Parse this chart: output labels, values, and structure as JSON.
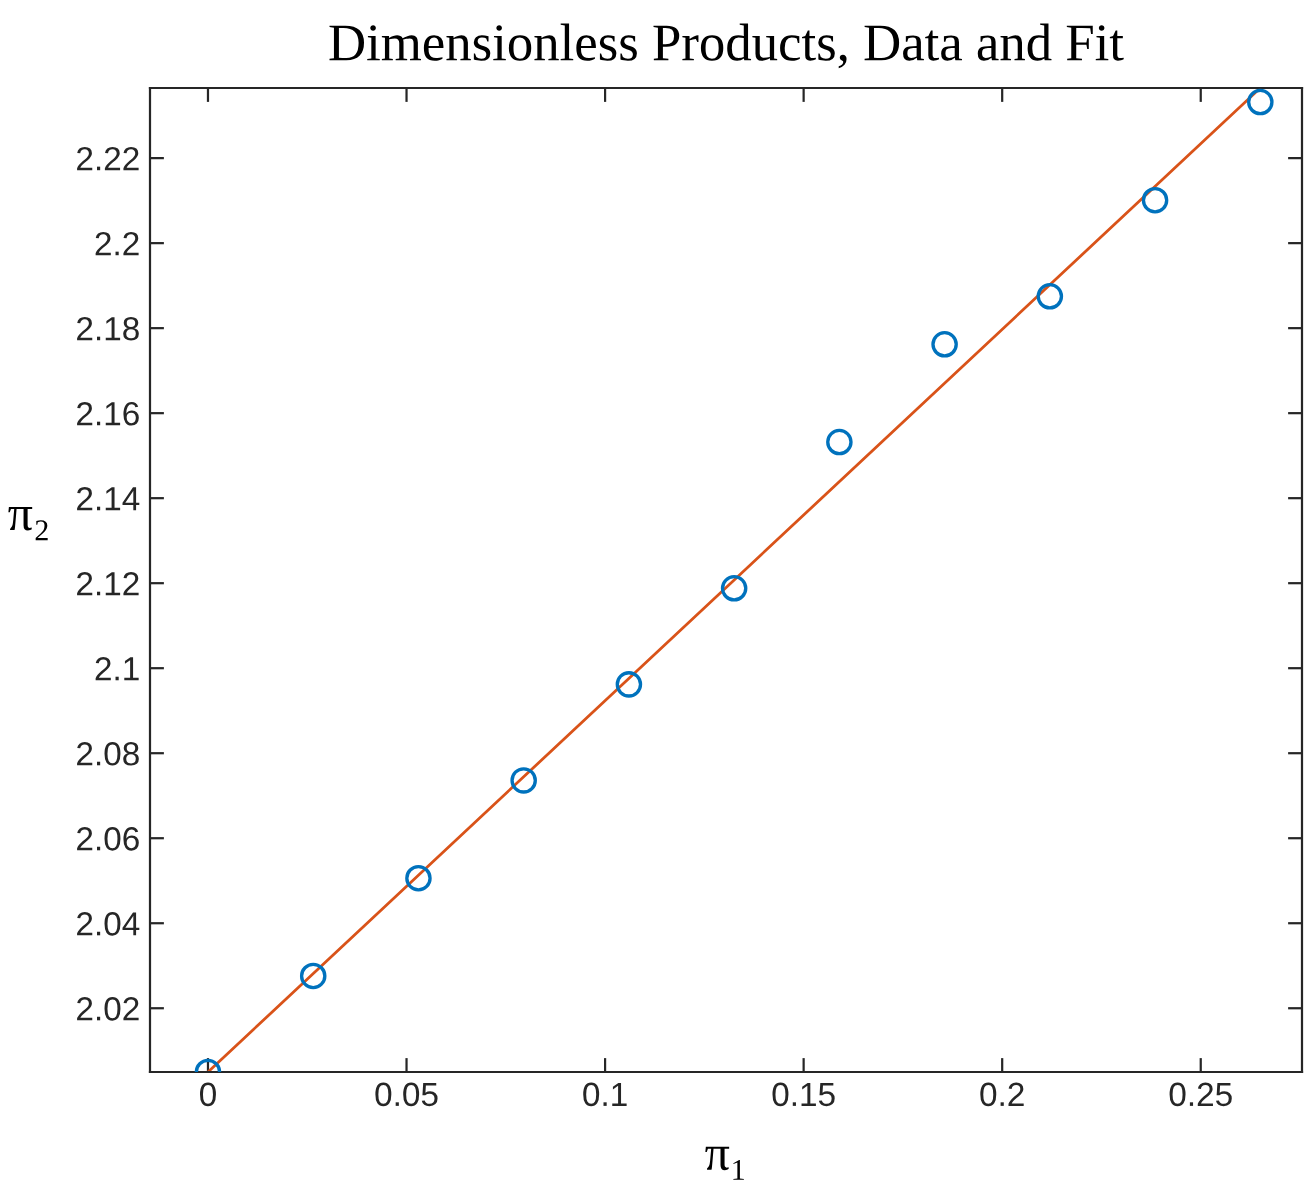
{
  "chart_data": {
    "type": "scatter",
    "title": "Dimensionless Products, Data and Fit",
    "xlabel": "π₁",
    "ylabel": "π₂",
    "xlim": [
      -0.0146,
      0.2755
    ],
    "ylim": [
      2.005,
      2.2365
    ],
    "xticks": [
      0,
      0.05,
      0.1,
      0.15,
      0.2,
      0.25
    ],
    "yticks": [
      2.02,
      2.04,
      2.06,
      2.08,
      2.1,
      2.12,
      2.14,
      2.16,
      2.18,
      2.2,
      2.22
    ],
    "grid": false,
    "series": [
      {
        "color": "#0072bd",
        "marker": "circle",
        "x": [
          0,
          0.0265,
          0.053,
          0.0795,
          0.106,
          0.1325,
          0.159,
          0.1855,
          0.212,
          0.2385,
          0.265
        ],
        "values": [
          2.005,
          2.0276,
          2.0506,
          2.0736,
          2.0962,
          2.1188,
          2.1532,
          2.1762,
          2.1875,
          2.2101,
          2.2332
        ]
      },
      {
        "type": "line",
        "color": "#d95319",
        "marker": "none",
        "line_style": "solid",
        "x": [
          0,
          0.265
        ],
        "values": [
          2.005,
          2.2365
        ]
      }
    ]
  }
}
